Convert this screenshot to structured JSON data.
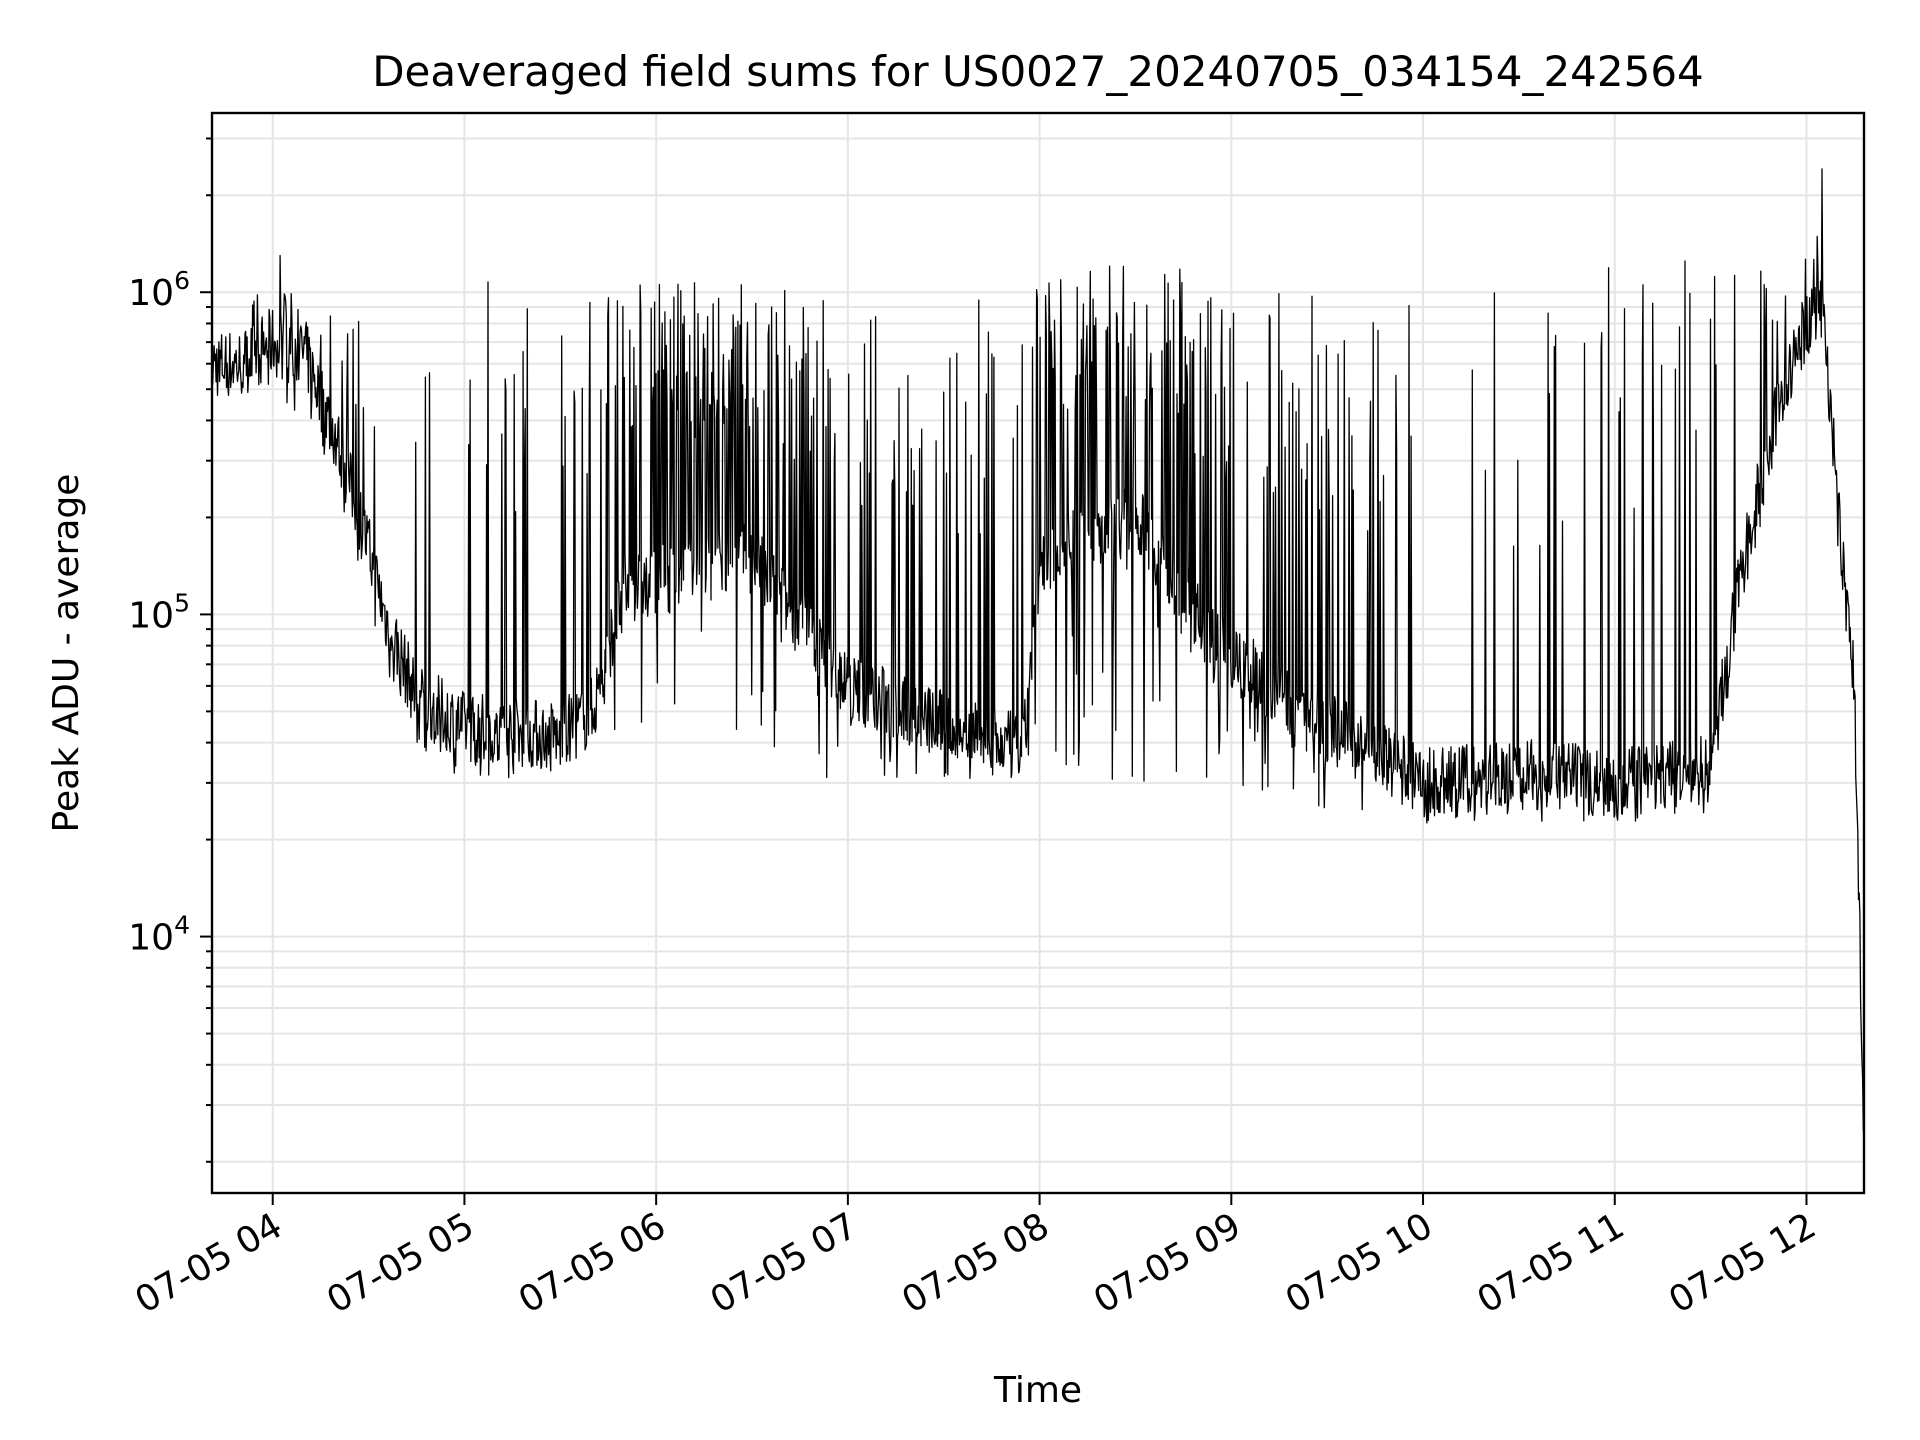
{
  "chart_data": {
    "type": "line",
    "title": "Deaveraged field sums for US0027_20240705_034154_242564",
    "xlabel": "Time",
    "ylabel": "Peak ADU - average",
    "y_scale": "log",
    "ylim": [
      1600,
      3600000
    ],
    "xlim": [
      "2024-07-05 03:41",
      "2024-07-05 12:18"
    ],
    "x_ticks": [
      "07-05 04",
      "07-05 05",
      "07-05 06",
      "07-05 07",
      "07-05 08",
      "07-05 09",
      "07-05 10",
      "07-05 11",
      "07-05 12"
    ],
    "x_tick_times": [
      "2024-07-05 04:00",
      "2024-07-05 05:00",
      "2024-07-05 06:00",
      "2024-07-05 07:00",
      "2024-07-05 08:00",
      "2024-07-05 09:00",
      "2024-07-05 10:00",
      "2024-07-05 11:00",
      "2024-07-05 12:00"
    ],
    "y_ticks": [
      {
        "value": 10000,
        "base": "10",
        "exp": "4"
      },
      {
        "value": 100000,
        "base": "10",
        "exp": "5"
      },
      {
        "value": 1000000,
        "base": "10",
        "exp": "6"
      }
    ],
    "grid": true,
    "series": [
      {
        "color": "#000000",
        "envelope": [
          {
            "t": "2024-07-05 03:41",
            "base": 600000,
            "spike": 700000,
            "dip": 450000,
            "ratio": 0.0
          },
          {
            "t": "2024-07-05 03:50",
            "base": 600000,
            "spike": 700000,
            "dip": 500000,
            "ratio": 0.05
          },
          {
            "t": "2024-07-05 04:00",
            "base": 700000,
            "spike": 1500000,
            "dip": 450000,
            "ratio": 0.25
          },
          {
            "t": "2024-07-05 04:10",
            "base": 650000,
            "spike": 1200000,
            "dip": 400000,
            "ratio": 0.3
          },
          {
            "t": "2024-07-05 04:20",
            "base": 350000,
            "spike": 1000000,
            "dip": 250000,
            "ratio": 0.25
          },
          {
            "t": "2024-07-05 04:30",
            "base": 160000,
            "spike": 900000,
            "dip": 110000,
            "ratio": 0.2
          },
          {
            "t": "2024-07-05 04:35",
            "base": 100000,
            "spike": 700000,
            "dip": 70000,
            "ratio": 0.15
          },
          {
            "t": "2024-07-05 04:45",
            "base": 55000,
            "spike": 600000,
            "dip": 35000,
            "ratio": 0.1
          },
          {
            "t": "2024-07-05 05:00",
            "base": 45000,
            "spike": 1200000,
            "dip": 30000,
            "ratio": 0.08
          },
          {
            "t": "2024-07-05 05:30",
            "base": 42000,
            "spike": 1200000,
            "dip": 32000,
            "ratio": 0.1
          },
          {
            "t": "2024-07-05 05:40",
            "base": 50000,
            "spike": 1100000,
            "dip": 36000,
            "ratio": 0.25
          },
          {
            "t": "2024-07-05 05:50",
            "base": 120000,
            "spike": 1100000,
            "dip": 36000,
            "ratio": 0.65
          },
          {
            "t": "2024-07-05 06:30",
            "base": 150000,
            "spike": 1100000,
            "dip": 35000,
            "ratio": 0.75
          },
          {
            "t": "2024-07-05 07:00",
            "base": 60000,
            "spike": 1000000,
            "dip": 30000,
            "ratio": 0.4
          },
          {
            "t": "2024-07-05 07:30",
            "base": 45000,
            "spike": 1000000,
            "dip": 30000,
            "ratio": 0.25
          },
          {
            "t": "2024-07-05 07:55",
            "base": 38000,
            "spike": 900000,
            "dip": 26000,
            "ratio": 0.15
          },
          {
            "t": "2024-07-05 08:00",
            "base": 150000,
            "spike": 1200000,
            "dip": 30000,
            "ratio": 0.7
          },
          {
            "t": "2024-07-05 08:30",
            "base": 200000,
            "spike": 1300000,
            "dip": 30000,
            "ratio": 0.75
          },
          {
            "t": "2024-07-05 08:55",
            "base": 80000,
            "spike": 1100000,
            "dip": 30000,
            "ratio": 0.5
          },
          {
            "t": "2024-07-05 09:30",
            "base": 45000,
            "spike": 1000000,
            "dip": 25000,
            "ratio": 0.35
          },
          {
            "t": "2024-07-05 10:00",
            "base": 30000,
            "spike": 1000000,
            "dip": 22000,
            "ratio": 0.12
          },
          {
            "t": "2024-07-05 10:30",
            "base": 32000,
            "spike": 1100000,
            "dip": 22000,
            "ratio": 0.12
          },
          {
            "t": "2024-07-05 11:00",
            "base": 30000,
            "spike": 1200000,
            "dip": 22000,
            "ratio": 0.12
          },
          {
            "t": "2024-07-05 11:30",
            "base": 33000,
            "spike": 1300000,
            "dip": 24000,
            "ratio": 0.15
          },
          {
            "t": "2024-07-05 11:35",
            "base": 70000,
            "spike": 1300000,
            "dip": 50000,
            "ratio": 0.15
          },
          {
            "t": "2024-07-05 11:40",
            "base": 140000,
            "spike": 1300000,
            "dip": 100000,
            "ratio": 0.12
          },
          {
            "t": "2024-07-05 11:50",
            "base": 400000,
            "spike": 1200000,
            "dip": 300000,
            "ratio": 0.1
          },
          {
            "t": "2024-07-05 12:00",
            "base": 800000,
            "spike": 1500000,
            "dip": 650000,
            "ratio": 0.1
          },
          {
            "t": "2024-07-05 12:05",
            "base": 1000000,
            "spike": 2600000,
            "dip": 700000,
            "ratio": 0.2
          },
          {
            "t": "2024-07-05 12:10",
            "base": 200000,
            "spike": 250000,
            "dip": 150000,
            "ratio": 0.05
          },
          {
            "t": "2024-07-05 12:15",
            "base": 60000,
            "spike": 70000,
            "dip": 50000,
            "ratio": 0.0
          },
          {
            "t": "2024-07-05 12:18",
            "base": 2500,
            "spike": 3000,
            "dip": 2000,
            "ratio": 0.0
          }
        ]
      }
    ]
  }
}
